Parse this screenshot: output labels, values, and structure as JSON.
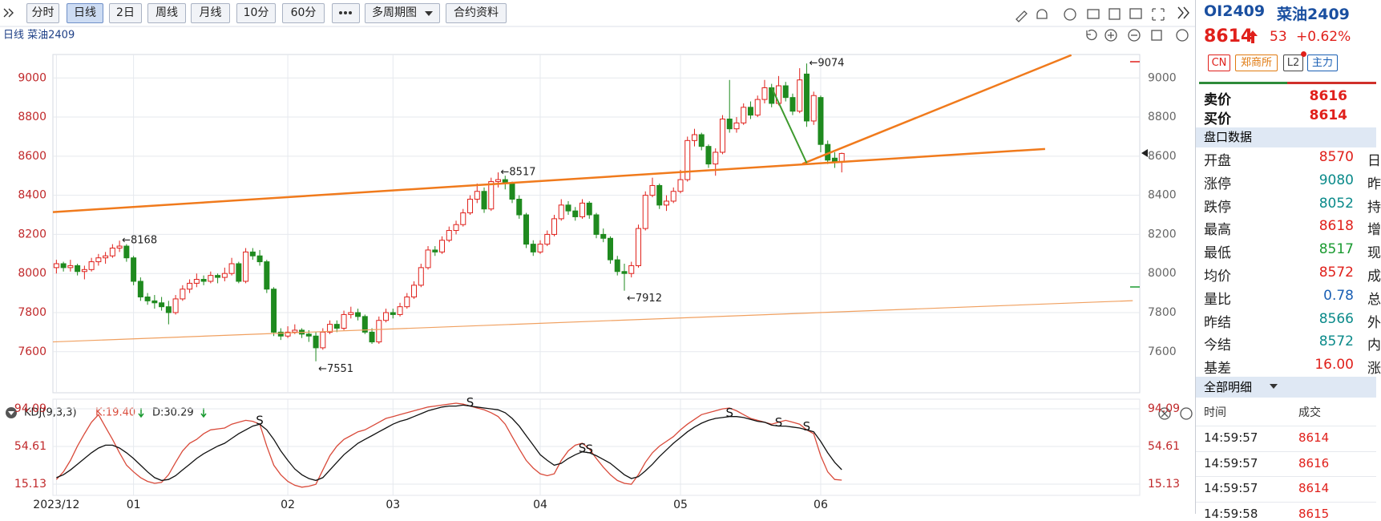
{
  "toolbar": {
    "buttons": [
      "分时",
      "日线",
      "2日",
      "周线",
      "月线",
      "10分",
      "60分",
      "多周期图",
      "合约资料"
    ],
    "active_index": 1
  },
  "chart_data": [
    {
      "type": "candlestick",
      "title": "日线 菜油2409",
      "open": [
        8030,
        8050,
        8030,
        8040,
        8010,
        8020,
        8060,
        8080,
        8090,
        8130,
        8140,
        8080,
        7960,
        7880,
        7860,
        7850,
        7830,
        7800,
        7870,
        7920,
        7950,
        7970,
        7960,
        7990,
        7980,
        8000,
        8050,
        7960,
        8110,
        8090,
        8060,
        7920,
        7700,
        7680,
        7700,
        7710,
        7690,
        7680,
        7620,
        7700,
        7740,
        7720,
        7790,
        7800,
        7780,
        7700,
        7650,
        7760,
        7800,
        7790,
        7830,
        7880,
        7940,
        8030,
        8120,
        8110,
        8170,
        8220,
        8250,
        8310,
        8380,
        8420,
        8330,
        8470,
        8480,
        8460,
        8380,
        8300,
        8150,
        8110,
        8150,
        8200,
        8280,
        8350,
        8320,
        8290,
        8360,
        8300,
        8200,
        8180,
        8070,
        8010,
        8000,
        8040,
        8230,
        8400,
        8450,
        8350,
        8370,
        8420,
        8480,
        8680,
        8710,
        8650,
        8560,
        8620,
        8790,
        8740,
        8770,
        8850,
        8810,
        8890,
        8950,
        8870,
        8960,
        8900,
        8830,
        9020,
        8780,
        8900,
        8660,
        8590,
        8570
      ],
      "high": [
        8070,
        8060,
        8070,
        8050,
        8040,
        8080,
        8100,
        8110,
        8150,
        8168,
        8150,
        8090,
        7980,
        7900,
        7890,
        7880,
        7860,
        7890,
        7940,
        7970,
        8000,
        7990,
        8010,
        8000,
        8030,
        8080,
        8060,
        8130,
        8130,
        8120,
        8070,
        7930,
        7720,
        7730,
        7740,
        7720,
        7710,
        7700,
        7720,
        7760,
        7760,
        7810,
        7830,
        7820,
        7790,
        7720,
        7780,
        7820,
        7820,
        7850,
        7900,
        7960,
        8050,
        8140,
        8140,
        8190,
        8240,
        8270,
        8330,
        8400,
        8460,
        8440,
        8490,
        8517,
        8500,
        8470,
        8400,
        8310,
        8170,
        8170,
        8220,
        8300,
        8380,
        8370,
        8340,
        8380,
        8370,
        8310,
        8230,
        8190,
        8090,
        8050,
        8060,
        8250,
        8420,
        8490,
        8460,
        8400,
        8440,
        8530,
        8700,
        8740,
        8720,
        8660,
        8640,
        8810,
        8990,
        8800,
        8870,
        8880,
        8910,
        8990,
        8970,
        9010,
        8980,
        8920,
        9050,
        9074,
        8930,
        8910,
        8680,
        8620,
        8618
      ],
      "low": [
        8000,
        8010,
        8010,
        7990,
        7970,
        8010,
        8040,
        8050,
        8080,
        8110,
        8060,
        7940,
        7860,
        7840,
        7820,
        7810,
        7740,
        7790,
        7860,
        7900,
        7930,
        7940,
        7950,
        7950,
        7960,
        7990,
        7950,
        7950,
        8070,
        8040,
        7900,
        7680,
        7660,
        7670,
        7690,
        7670,
        7650,
        7551,
        7610,
        7690,
        7700,
        7710,
        7770,
        7760,
        7690,
        7640,
        7640,
        7750,
        7770,
        7780,
        7820,
        7870,
        7930,
        8020,
        8090,
        8100,
        8160,
        8200,
        8240,
        8300,
        8360,
        8310,
        8320,
        8440,
        8430,
        8360,
        8280,
        8130,
        8090,
        8100,
        8140,
        8190,
        8270,
        8300,
        8270,
        8280,
        8280,
        8180,
        8160,
        8050,
        7990,
        7912,
        7980,
        8030,
        8220,
        8390,
        8330,
        8320,
        8360,
        8410,
        8470,
        8650,
        8630,
        8540,
        8500,
        8610,
        8720,
        8720,
        8760,
        8790,
        8800,
        8870,
        8850,
        8860,
        8880,
        8810,
        8820,
        8750,
        8760,
        8620,
        8560,
        8540,
        8517
      ],
      "close": [
        8050,
        8030,
        8040,
        8010,
        8020,
        8060,
        8080,
        8090,
        8130,
        8140,
        8080,
        7960,
        7880,
        7860,
        7850,
        7830,
        7800,
        7870,
        7920,
        7950,
        7970,
        7960,
        7990,
        7980,
        8000,
        8050,
        7960,
        8110,
        8090,
        8060,
        7920,
        7700,
        7680,
        7700,
        7710,
        7690,
        7680,
        7620,
        7700,
        7740,
        7720,
        7790,
        7800,
        7780,
        7700,
        7650,
        7760,
        7800,
        7790,
        7830,
        7880,
        7940,
        8030,
        8120,
        8110,
        8170,
        8220,
        8250,
        8310,
        8380,
        8420,
        8330,
        8470,
        8480,
        8460,
        8380,
        8300,
        8150,
        8110,
        8150,
        8200,
        8280,
        8350,
        8320,
        8290,
        8360,
        8300,
        8200,
        8180,
        8070,
        8010,
        8000,
        8040,
        8230,
        8400,
        8450,
        8350,
        8370,
        8420,
        8480,
        8680,
        8710,
        8650,
        8560,
        8620,
        8790,
        8740,
        8770,
        8850,
        8810,
        8890,
        8950,
        8870,
        8960,
        8900,
        8830,
        8990,
        8780,
        8910,
        8660,
        8580,
        8570,
        8614
      ],
      "up_color": "#e0201b",
      "down_color": "#1f8a1f",
      "xlim": [
        -0.5,
        154.5
      ],
      "xticks": [
        {
          "value": 0,
          "label": "2023/12"
        },
        {
          "value": 11,
          "label": "01"
        },
        {
          "value": 33,
          "label": "02"
        },
        {
          "value": 48,
          "label": "03"
        },
        {
          "value": 69,
          "label": "04"
        },
        {
          "value": 89,
          "label": "05"
        },
        {
          "value": 109,
          "label": "06"
        }
      ],
      "ylim": [
        7390,
        9120
      ],
      "yticks": [
        7600,
        7800,
        8000,
        8200,
        8400,
        8600,
        8800,
        9000
      ],
      "grid": true,
      "annotations": [
        {
          "index": 9,
          "value": 8168,
          "label": "←8168"
        },
        {
          "index": 37,
          "value": 7551,
          "label": "←7551"
        },
        {
          "index": 63,
          "value": 8517,
          "label": "←8517"
        },
        {
          "index": 81,
          "value": 7912,
          "label": "←7912"
        },
        {
          "index": 107,
          "value": 9074,
          "label": "←9074"
        }
      ],
      "trendlines": [
        {
          "x": [
            -0.5,
            141
          ],
          "y": [
            8314,
            8637
          ],
          "color": "#f07a1c",
          "width": 2.5
        },
        {
          "x": [
            106.4,
            144.75
          ],
          "y": [
            8561,
            9117
          ],
          "color": "#f07a1c",
          "width": 2.5
        },
        {
          "x": [
            -0.5,
            153.5
          ],
          "y": [
            7650,
            7861
          ],
          "color": "#f0a060",
          "width": 1.2
        },
        {
          "x": [
            102,
            107
          ],
          "y": [
            8951,
            8565
          ],
          "color": "#3d9a2e",
          "width": 2
        }
      ]
    },
    {
      "type": "line",
      "title": "KDJ(9,3,3)",
      "series": [
        {
          "name": "K:19.40",
          "color": "#d94a3a",
          "values": [
            20,
            28,
            40,
            55,
            68,
            80,
            88,
            75,
            62,
            48,
            35,
            28,
            22,
            18,
            16,
            17,
            25,
            38,
            50,
            58,
            62,
            68,
            72,
            73,
            74,
            78,
            80,
            82,
            81,
            78,
            55,
            35,
            25,
            18,
            14,
            12,
            13,
            15,
            30,
            45,
            55,
            62,
            66,
            70,
            72,
            76,
            80,
            84,
            86,
            88,
            90,
            92,
            94,
            96,
            97,
            98,
            99,
            100,
            99,
            97,
            95,
            93,
            90,
            86,
            78,
            65,
            52,
            40,
            32,
            26,
            24,
            26,
            40,
            50,
            56,
            58,
            52,
            42,
            33,
            25,
            19,
            16,
            15,
            25,
            38,
            48,
            55,
            60,
            65,
            72,
            78,
            83,
            88,
            90,
            92,
            94,
            95,
            92,
            88,
            84,
            82,
            80,
            78,
            80,
            82,
            80,
            78,
            72,
            68,
            45,
            28,
            20,
            19.4
          ]
        },
        {
          "name": "D:30.29",
          "color": "#111111",
          "values": [
            22,
            25,
            30,
            36,
            42,
            48,
            53,
            56,
            56,
            53,
            48,
            42,
            35,
            28,
            22,
            19,
            20,
            24,
            30,
            36,
            42,
            47,
            51,
            55,
            58,
            63,
            68,
            72,
            76,
            78,
            72,
            62,
            50,
            40,
            31,
            25,
            21,
            19,
            22,
            30,
            38,
            46,
            52,
            58,
            62,
            66,
            70,
            74,
            78,
            81,
            83,
            86,
            89,
            92,
            94,
            96,
            97,
            97,
            98,
            97,
            96,
            95,
            94,
            93,
            90,
            84,
            76,
            66,
            56,
            46,
            40,
            35,
            37,
            42,
            46,
            49,
            48,
            45,
            41,
            37,
            31,
            25,
            21,
            23,
            29,
            36,
            44,
            51,
            58,
            64,
            70,
            75,
            79,
            82,
            84,
            85,
            86,
            86,
            85,
            83,
            81,
            80,
            77,
            76,
            76,
            75,
            74,
            72,
            70,
            60,
            48,
            38,
            30.29
          ]
        }
      ],
      "signals": [
        {
          "index": 29,
          "label": "S"
        },
        {
          "index": 59,
          "label": "S"
        },
        {
          "index": 75,
          "label": "S"
        },
        {
          "index": 76,
          "label": "S"
        },
        {
          "index": 96,
          "label": "S"
        },
        {
          "index": 103,
          "label": "S"
        },
        {
          "index": 107,
          "label": "S"
        }
      ],
      "ylim": [
        3.4,
        104.2
      ],
      "yticks": [
        15.13,
        54.61,
        94.09
      ],
      "grid": true
    }
  ],
  "quote": {
    "symbol": "OI2409",
    "name": "菜油2409",
    "price": "8614",
    "change": "53",
    "change_pct": "+0.62%",
    "tags": [
      "CN",
      "郑商所",
      "L2",
      "主力"
    ],
    "ask": {
      "label": "卖价",
      "value": "8616"
    },
    "bid": {
      "label": "买价",
      "value": "8614"
    },
    "section_title": "盘口数据",
    "rows": [
      {
        "label": "开盘",
        "value": "8570",
        "color": "#e0201b",
        "extra": "日"
      },
      {
        "label": "涨停",
        "value": "9080",
        "color": "#0a8a8a",
        "extra": "昨"
      },
      {
        "label": "跌停",
        "value": "8052",
        "color": "#0a8a8a",
        "extra": "持"
      },
      {
        "label": "最高",
        "value": "8618",
        "color": "#e0201b",
        "extra": "增"
      },
      {
        "label": "最低",
        "value": "8517",
        "color": "#1a9a30",
        "extra": "现"
      },
      {
        "label": "均价",
        "value": "8572",
        "color": "#e0201b",
        "extra": "成"
      },
      {
        "label": "量比",
        "value": "0.78",
        "color": "#1a5fb4",
        "extra": "总"
      },
      {
        "label": "昨结",
        "value": "8566",
        "color": "#0a8a8a",
        "extra": "外"
      },
      {
        "label": "今结",
        "value": "8572",
        "color": "#0a8a8a",
        "extra": "内"
      },
      {
        "label": "基差",
        "value": "16.00",
        "color": "#e0201b",
        "extra": "涨"
      }
    ],
    "detail_title": "全部明细",
    "columns": [
      "时间",
      "成交"
    ],
    "trades": [
      {
        "time": "14:59:57",
        "price": "8614"
      },
      {
        "time": "14:59:57",
        "price": "8616"
      },
      {
        "time": "14:59:57",
        "price": "8614"
      },
      {
        "time": "14:59:58",
        "price": "8615"
      }
    ]
  }
}
